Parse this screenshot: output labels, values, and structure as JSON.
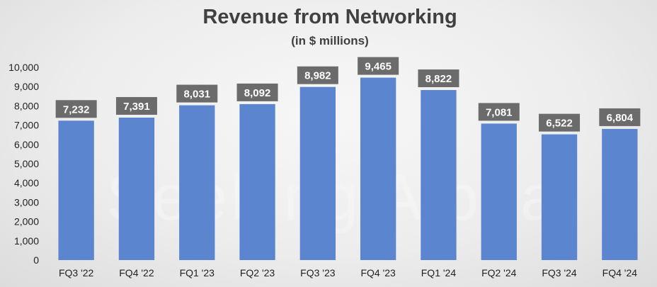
{
  "watermark": "Seeking Alpha",
  "chart_data": {
    "type": "bar",
    "title": "Revenue from Networking",
    "subtitle": "(in $ millions)",
    "categories": [
      "FQ3 '22",
      "FQ4 '22",
      "FQ1 '23",
      "FQ2 '23",
      "FQ3 '23",
      "FQ4 '23",
      "FQ1 '24",
      "FQ2 '24",
      "FQ3 '24",
      "FQ4 '24"
    ],
    "values": [
      7232,
      7391,
      8031,
      8092,
      8982,
      9465,
      8822,
      7081,
      6522,
      6804
    ],
    "data_labels": [
      "7,232",
      "7,391",
      "8,031",
      "8,092",
      "8,982",
      "9,465",
      "8,822",
      "7,081",
      "6,522",
      "6,804"
    ],
    "y_ticks": [
      "0",
      "1,000",
      "2,000",
      "3,000",
      "4,000",
      "5,000",
      "6,000",
      "7,000",
      "8,000",
      "9,000",
      "10,000"
    ],
    "ylim": [
      0,
      10000
    ],
    "grid": false,
    "legend": "none",
    "colors": {
      "bar": "#5b86cf",
      "label_box": "#6b6b6b",
      "label_text": "#ffffff",
      "title": "#404040"
    }
  }
}
